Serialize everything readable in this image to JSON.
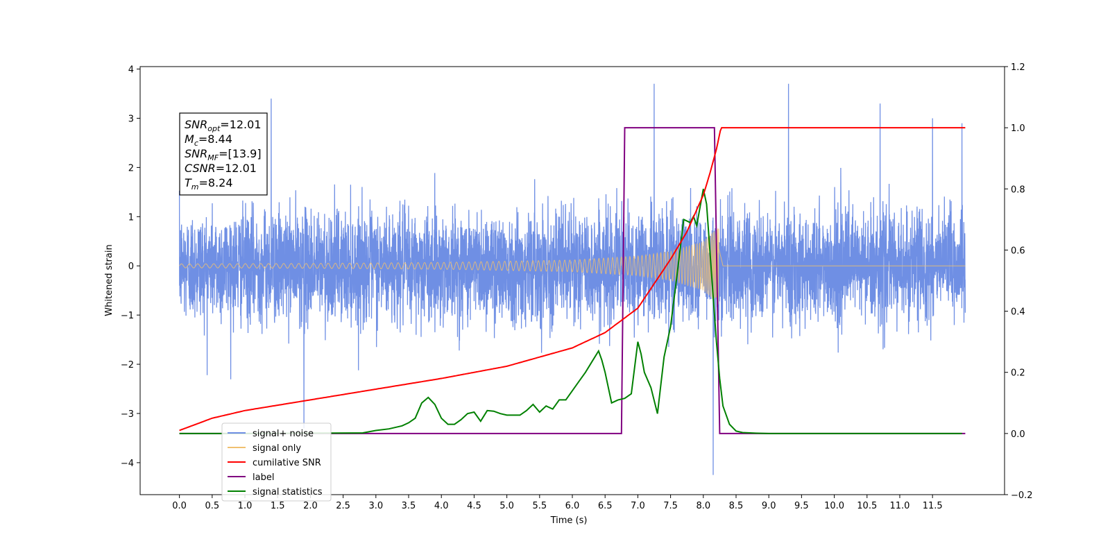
{
  "chart_data": {
    "type": "line",
    "xlabel": "Time (s)",
    "ylabel_left": "Whitened strain",
    "ylabel_right": "",
    "xlim": [
      -0.6,
      12.6
    ],
    "ylim_left": [
      -4.65,
      4.05
    ],
    "ylim_right": [
      -0.2,
      1.2
    ],
    "grid": false,
    "x_ticks": [
      "0.0",
      "0.5",
      "1.0",
      "1.5",
      "2.0",
      "2.5",
      "3.0",
      "3.5",
      "4.0",
      "4.5",
      "5.0",
      "5.5",
      "6.0",
      "6.5",
      "7.0",
      "7.5",
      "8.0",
      "8.5",
      "9.0",
      "9.5",
      "10.0",
      "10.5",
      "11.0",
      "11.5"
    ],
    "y_ticks_left": [
      "−4",
      "−3",
      "−2",
      "−1",
      "0",
      "1",
      "2",
      "3",
      "4"
    ],
    "y_ticks_right": [
      "−0.2",
      "0.0",
      "0.2",
      "0.4",
      "0.6",
      "0.8",
      "1.0",
      "1.2"
    ],
    "legend_position": "lower-left",
    "series": [
      {
        "name": "signal+ noise",
        "axis": "left",
        "color": "#6f8fe4",
        "description": "whitened strain, noise amplitude ~ ±1.5 with spikes to ±3.7, from t=0 to t=12",
        "x_range": [
          0,
          12
        ],
        "peaks": [
          [
            1.4,
            3.4
          ],
          [
            1.9,
            -3.3
          ],
          [
            7.25,
            3.7
          ],
          [
            8.15,
            -4.25
          ],
          [
            9.3,
            3.7
          ],
          [
            10.7,
            3.3
          ],
          [
            11.5,
            3.0
          ],
          [
            11.95,
            2.9
          ]
        ]
      },
      {
        "name": "signal only",
        "axis": "left",
        "color": "#f0c070",
        "description": "chirp oscillation with growing amplitude, merger near t=8.24, zero afterwards",
        "x": [
          0,
          2,
          4,
          6,
          7,
          7.5,
          8.0,
          8.24,
          8.3,
          12
        ],
        "envelope": [
          0.04,
          0.05,
          0.07,
          0.12,
          0.2,
          0.3,
          0.5,
          0.8,
          0.0,
          0.0
        ]
      },
      {
        "name": "cumilative SNR",
        "axis": "right",
        "color": "#ff0000",
        "x": [
          0,
          0.5,
          1,
          2,
          3,
          4,
          5,
          6,
          6.5,
          7,
          7.5,
          7.75,
          8.0,
          8.1,
          8.2,
          8.27,
          12
        ],
        "values": [
          0.01,
          0.05,
          0.075,
          0.11,
          0.145,
          0.18,
          0.22,
          0.28,
          0.33,
          0.41,
          0.57,
          0.66,
          0.78,
          0.85,
          0.93,
          1.0,
          1.0
        ]
      },
      {
        "name": "label",
        "axis": "right",
        "color": "#800080",
        "x": [
          0,
          6.75,
          6.8,
          8.17,
          8.25,
          12
        ],
        "values": [
          0,
          0,
          1,
          1,
          0,
          0
        ]
      },
      {
        "name": "signal statistics",
        "axis": "right",
        "color": "#008000",
        "x": [
          0,
          1,
          2,
          2.8,
          3.0,
          3.2,
          3.4,
          3.5,
          3.6,
          3.7,
          3.8,
          3.9,
          4.0,
          4.1,
          4.2,
          4.3,
          4.4,
          4.5,
          4.6,
          4.7,
          4.8,
          4.9,
          5.0,
          5.2,
          5.3,
          5.4,
          5.5,
          5.6,
          5.7,
          5.8,
          5.9,
          6.0,
          6.1,
          6.2,
          6.3,
          6.4,
          6.45,
          6.5,
          6.6,
          6.7,
          6.8,
          6.9,
          7.0,
          7.05,
          7.1,
          7.2,
          7.3,
          7.4,
          7.5,
          7.6,
          7.7,
          7.8,
          7.85,
          7.9,
          8.0,
          8.05,
          8.1,
          8.15,
          8.2,
          8.25,
          8.3,
          8.4,
          8.5,
          8.6,
          8.8,
          9.0,
          10,
          11,
          11.95
        ],
        "values": [
          0,
          0,
          0.001,
          0.002,
          0.01,
          0.015,
          0.025,
          0.035,
          0.05,
          0.1,
          0.118,
          0.095,
          0.05,
          0.03,
          0.03,
          0.045,
          0.065,
          0.07,
          0.04,
          0.075,
          0.073,
          0.065,
          0.06,
          0.06,
          0.075,
          0.095,
          0.07,
          0.09,
          0.08,
          0.11,
          0.11,
          0.14,
          0.17,
          0.2,
          0.235,
          0.27,
          0.24,
          0.2,
          0.1,
          0.11,
          0.115,
          0.13,
          0.3,
          0.26,
          0.2,
          0.15,
          0.065,
          0.25,
          0.35,
          0.52,
          0.7,
          0.69,
          0.71,
          0.68,
          0.8,
          0.75,
          0.6,
          0.45,
          0.3,
          0.18,
          0.09,
          0.03,
          0.008,
          0.003,
          0.001,
          0,
          0,
          0,
          0
        ]
      }
    ],
    "annotation": [
      {
        "base": "SNR",
        "sub": "opt",
        "value": "=12.01"
      },
      {
        "base": "M",
        "sub": "c",
        "value": "=8.44"
      },
      {
        "base": "SNR",
        "sub": "MF",
        "value": "=[13.9]"
      },
      {
        "base": "CSNR",
        "sub": "",
        "value": "=12.01"
      },
      {
        "base": "T",
        "sub": "m",
        "value": "=8.24"
      }
    ]
  }
}
